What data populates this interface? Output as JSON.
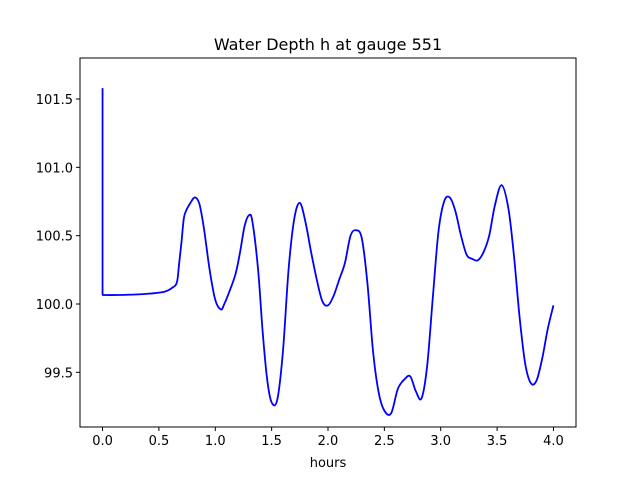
{
  "chart_data": {
    "type": "line",
    "title": "Water Depth h at gauge 551",
    "xlabel": "hours",
    "ylabel": "",
    "xlim": [
      -0.2,
      4.2
    ],
    "ylim": [
      99.1,
      101.8
    ],
    "xticks": [
      0.0,
      0.5,
      1.0,
      1.5,
      2.0,
      2.5,
      3.0,
      3.5,
      4.0
    ],
    "xtick_labels": [
      "0.0",
      "0.5",
      "1.0",
      "1.5",
      "2.0",
      "2.5",
      "3.0",
      "3.5",
      "4.0"
    ],
    "yticks": [
      99.5,
      100.0,
      100.5,
      101.0,
      101.5
    ],
    "ytick_labels": [
      "99.5",
      "100.0",
      "100.5",
      "101.0",
      "101.5"
    ],
    "grid": false,
    "series": [
      {
        "color": "#0000ff",
        "x": [
          0.0,
          0.0,
          0.002,
          0.2,
          0.4,
          0.55,
          0.62,
          0.66,
          0.68,
          0.7,
          0.72,
          0.74,
          0.78,
          0.82,
          0.86,
          0.9,
          0.95,
          1.0,
          1.05,
          1.08,
          1.12,
          1.18,
          1.22,
          1.26,
          1.3,
          1.33,
          1.38,
          1.42,
          1.46,
          1.5,
          1.55,
          1.6,
          1.65,
          1.7,
          1.75,
          1.8,
          1.85,
          1.9,
          1.95,
          2.0,
          2.05,
          2.1,
          2.15,
          2.2,
          2.25,
          2.3,
          2.35,
          2.4,
          2.45,
          2.5,
          2.56,
          2.62,
          2.68,
          2.73,
          2.78,
          2.83,
          2.88,
          2.93,
          2.98,
          3.03,
          3.08,
          3.13,
          3.18,
          3.23,
          3.28,
          3.33,
          3.38,
          3.43,
          3.48,
          3.54,
          3.6,
          3.65,
          3.7,
          3.75,
          3.8,
          3.85,
          3.9,
          3.95,
          4.0
        ],
        "values": [
          101.58,
          100.07,
          100.066,
          100.067,
          100.075,
          100.09,
          100.12,
          100.16,
          100.3,
          100.45,
          100.62,
          100.68,
          100.74,
          100.78,
          100.73,
          100.55,
          100.25,
          100.03,
          99.96,
          100.0,
          100.08,
          100.22,
          100.38,
          100.57,
          100.65,
          100.6,
          100.25,
          99.8,
          99.45,
          99.28,
          99.3,
          99.65,
          100.25,
          100.62,
          100.74,
          100.6,
          100.38,
          100.18,
          100.02,
          99.99,
          100.06,
          100.18,
          100.3,
          100.5,
          100.54,
          100.48,
          100.15,
          99.65,
          99.35,
          99.22,
          99.2,
          99.38,
          99.45,
          99.47,
          99.36,
          99.31,
          99.55,
          100.05,
          100.53,
          100.75,
          100.78,
          100.68,
          100.5,
          100.36,
          100.33,
          100.32,
          100.38,
          100.5,
          100.72,
          100.87,
          100.7,
          100.35,
          99.9,
          99.56,
          99.42,
          99.44,
          99.6,
          99.82,
          99.99
        ]
      }
    ]
  }
}
